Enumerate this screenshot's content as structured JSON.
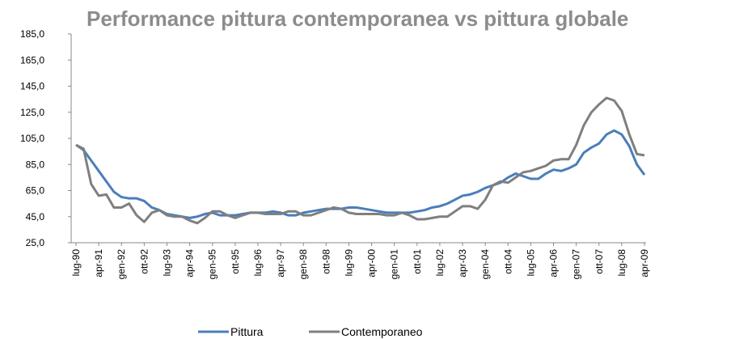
{
  "chart_data": {
    "type": "line",
    "title": "Performance  pittura contemporanea vs pittura globale",
    "categories": [
      "lug-90",
      null,
      null,
      "apr-91",
      null,
      null,
      "gen-92",
      null,
      null,
      "ott-92",
      null,
      null,
      "lug-93",
      null,
      null,
      "apr-94",
      null,
      null,
      "gen-95",
      null,
      null,
      "ott-95",
      null,
      null,
      "lug-96",
      null,
      null,
      "apr-97",
      null,
      null,
      "gen-98",
      null,
      null,
      "ott-98",
      null,
      null,
      "lug-99",
      null,
      null,
      "apr-00",
      null,
      null,
      "gen-01",
      null,
      null,
      "ott-01",
      null,
      null,
      "lug-02",
      null,
      null,
      "apr-03",
      null,
      null,
      "gen-04",
      null,
      null,
      "ott-04",
      null,
      null,
      "lug-05",
      null,
      null,
      "apr-06",
      null,
      null,
      "gen-07",
      null,
      null,
      "ott-07",
      null,
      null,
      "lug-08",
      null,
      null,
      "apr-09"
    ],
    "series": [
      {
        "name": "Pittura",
        "color": "#4a7ebb",
        "values": [
          100,
          96,
          88,
          80,
          72,
          64,
          60,
          59,
          59,
          57,
          52,
          50,
          47,
          46,
          45,
          44,
          45,
          47,
          48,
          46,
          46,
          46,
          47,
          48,
          48,
          48,
          49,
          48,
          46,
          46,
          48,
          49,
          50,
          51,
          51,
          51,
          52,
          52,
          51,
          50,
          49,
          48,
          48,
          48,
          48,
          49,
          50,
          52,
          53,
          55,
          58,
          61,
          62,
          64,
          67,
          69,
          71,
          75,
          78,
          76,
          74,
          74,
          78,
          81,
          80,
          82,
          85,
          94,
          98,
          101,
          108,
          111,
          108,
          99,
          85,
          77
        ]
      },
      {
        "name": "Contemporaneo",
        "color": "#7f7f7f",
        "values": [
          100,
          97,
          70,
          61,
          62,
          52,
          52,
          55,
          46,
          41,
          48,
          50,
          46,
          45,
          45,
          42,
          40,
          44,
          49,
          49,
          46,
          44,
          46,
          48,
          48,
          47,
          47,
          47,
          49,
          49,
          46,
          46,
          48,
          50,
          52,
          51,
          48,
          47,
          47,
          47,
          47,
          46,
          46,
          48,
          46,
          43,
          43,
          44,
          45,
          45,
          49,
          53,
          53,
          51,
          58,
          69,
          72,
          71,
          75,
          79,
          80,
          82,
          84,
          88,
          89,
          89,
          100,
          115,
          125,
          131,
          136,
          134,
          126,
          108,
          93,
          92
        ]
      }
    ],
    "ylim": [
      25,
      185
    ],
    "yticks": [
      {
        "value": 25,
        "label": "25,0"
      },
      {
        "value": 45,
        "label": "45,0"
      },
      {
        "value": 65,
        "label": "65,0"
      },
      {
        "value": 85,
        "label": "85,0"
      },
      {
        "value": 105,
        "label": "105,0"
      },
      {
        "value": 125,
        "label": "125,0"
      },
      {
        "value": 145,
        "label": "145,0"
      },
      {
        "value": 165,
        "label": "165,0"
      },
      {
        "value": 185,
        "label": "185,0"
      }
    ],
    "legend": "bottom"
  }
}
